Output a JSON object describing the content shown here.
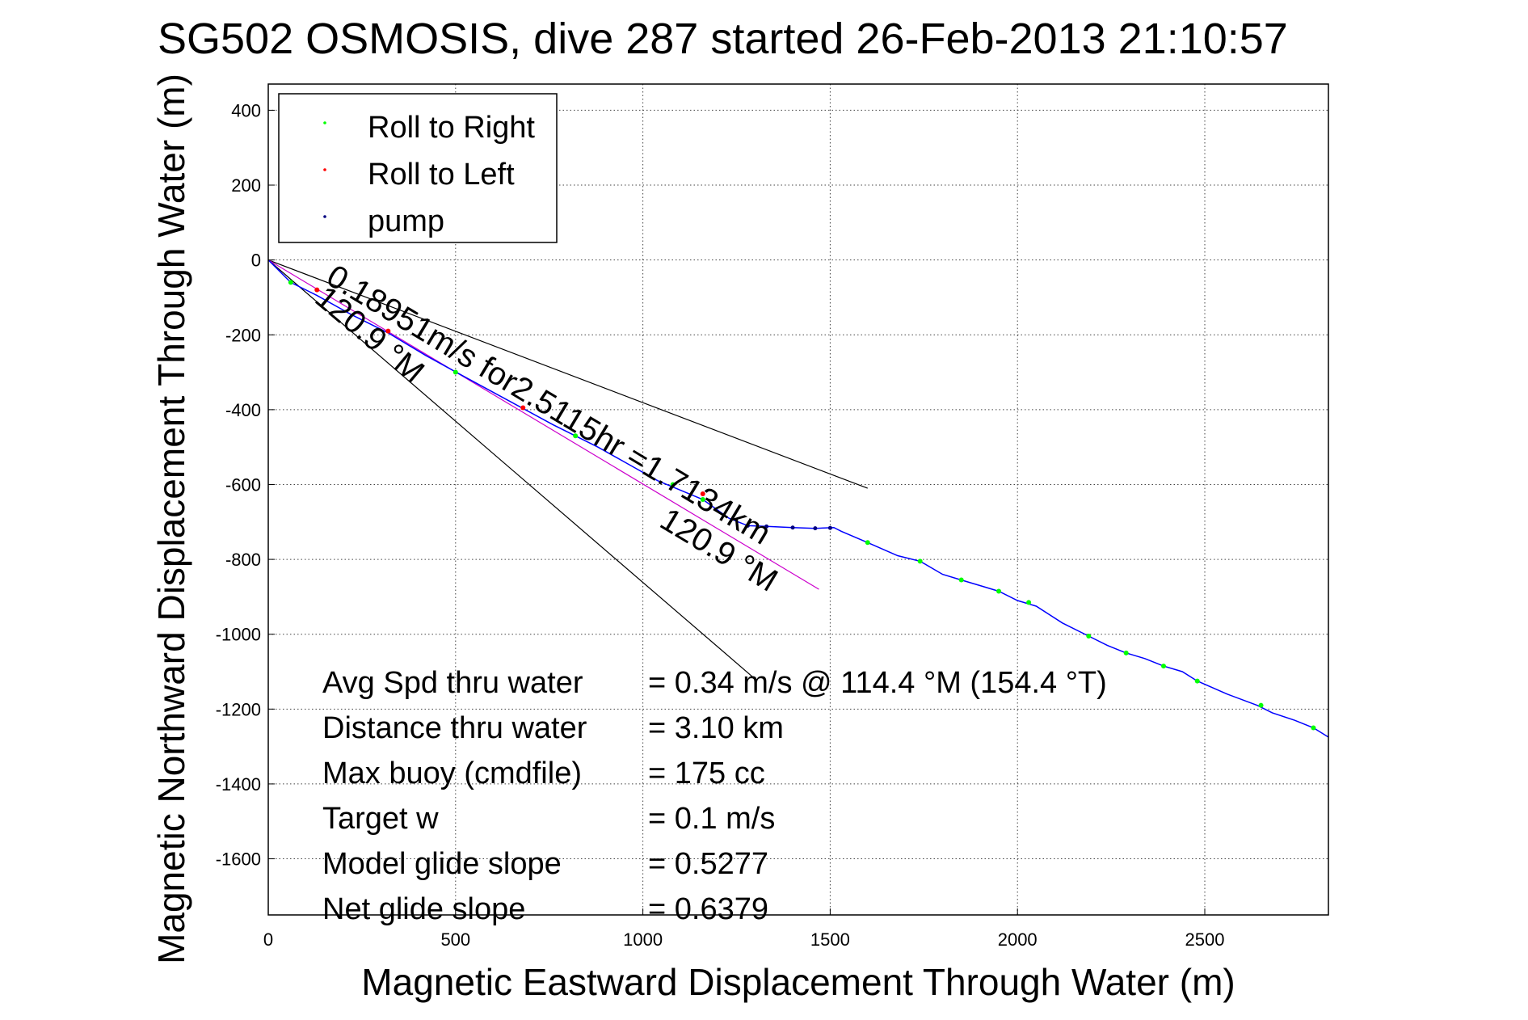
{
  "chart_data": {
    "type": "line",
    "title": "SG502 OSMOSIS, dive 287 started 26-Feb-2013 21:10:57",
    "xlabel": "Magnetic Eastward Displacement Through Water (m)",
    "ylabel": "Magnetic Northward Displacement Through Water (m)",
    "xlim": [
      0,
      2830
    ],
    "ylim": [
      -1750,
      470
    ],
    "xticks": [
      0,
      500,
      1000,
      1500,
      2000,
      2500
    ],
    "yticks": [
      400,
      200,
      0,
      -200,
      -400,
      -600,
      -800,
      -1000,
      -1200,
      -1400,
      -1600
    ],
    "grid": true,
    "legend_position": "top-left",
    "legend": [
      {
        "label": "Roll to Right",
        "color": "#00ff00"
      },
      {
        "label": "Roll to Left",
        "color": "#ff0000"
      },
      {
        "label": "pump",
        "color": "#000080"
      }
    ],
    "track": {
      "color": "#0000ff",
      "x": [
        0,
        60,
        130,
        220,
        320,
        420,
        520,
        640,
        760,
        880,
        960,
        1040,
        1100,
        1160,
        1230,
        1280,
        1330,
        1400,
        1460,
        1510,
        1530,
        1600,
        1680,
        1740,
        1800,
        1850,
        1900,
        1950,
        2000,
        2050,
        2120,
        2190,
        2240,
        2290,
        2340,
        2390,
        2440,
        2480,
        2560,
        2640,
        2680,
        2740,
        2790,
        2830
      ],
      "y": [
        0,
        -60,
        -95,
        -145,
        -195,
        -255,
        -310,
        -375,
        -440,
        -500,
        -545,
        -590,
        -615,
        -640,
        -690,
        -710,
        -712,
        -715,
        -717,
        -715,
        -725,
        -755,
        -790,
        -805,
        -840,
        -855,
        -870,
        -885,
        -910,
        -925,
        -970,
        -1005,
        -1030,
        -1050,
        -1065,
        -1085,
        -1100,
        -1125,
        -1160,
        -1190,
        -1210,
        -1230,
        -1250,
        -1275
      ]
    },
    "roll_right_points": [
      [
        60,
        -60
      ],
      [
        500,
        -300
      ],
      [
        820,
        -470
      ],
      [
        1080,
        -600
      ],
      [
        1160,
        -640
      ],
      [
        1600,
        -755
      ],
      [
        1740,
        -805
      ],
      [
        1850,
        -855
      ],
      [
        1950,
        -885
      ],
      [
        2030,
        -915
      ],
      [
        2190,
        -1005
      ],
      [
        2290,
        -1050
      ],
      [
        2390,
        -1085
      ],
      [
        2480,
        -1125
      ],
      [
        2650,
        -1190
      ],
      [
        2790,
        -1250
      ]
    ],
    "roll_left_points": [
      [
        130,
        -80
      ],
      [
        320,
        -190
      ],
      [
        680,
        -395
      ],
      [
        1160,
        -625
      ]
    ],
    "pump_points": [
      [
        1280,
        -710
      ],
      [
        1330,
        -712
      ],
      [
        1400,
        -715
      ],
      [
        1460,
        -717
      ],
      [
        1500,
        -716
      ]
    ],
    "reference_lines": [
      {
        "name": "upper-bound-line",
        "color": "#000000",
        "from": [
          0,
          0
        ],
        "to": [
          1600,
          -610
        ]
      },
      {
        "name": "lower-bound-line",
        "color": "#000000",
        "from": [
          0,
          0
        ],
        "to": [
          1300,
          -1120
        ]
      },
      {
        "name": "heading-line",
        "color": "#cc00cc",
        "from": [
          0,
          0
        ],
        "to": [
          1470,
          -880
        ]
      }
    ],
    "annotations": [
      {
        "text": "0.18951m/s for2.5115hr =1.7134km",
        "x": 150,
        "y": -60,
        "angle": 31
      },
      {
        "text": "120.9 °M",
        "x": 120,
        "y": -110,
        "angle": 40
      },
      {
        "text": "120.9 °M",
        "x": 1040,
        "y": -710,
        "angle": 31
      }
    ],
    "summary": [
      {
        "label": "Avg Spd thru water",
        "value": "=  0.34 m/s @ 114.4 °M (154.4 °T)"
      },
      {
        "label": "Distance thru water",
        "value": "=  3.10 km"
      },
      {
        "label": "Max buoy (cmdfile)",
        "value": "= 175 cc"
      },
      {
        "label": "Target w",
        "value": "= 0.1 m/s"
      },
      {
        "label": "Model glide slope",
        "value": "= 0.5277"
      },
      {
        "label": "Net glide slope",
        "value": "= 0.6379"
      }
    ]
  }
}
